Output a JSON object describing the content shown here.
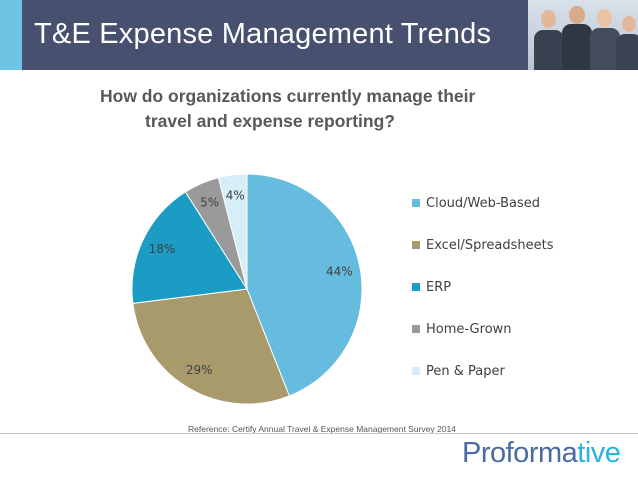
{
  "header": {
    "title": "T&E Expense Management Trends"
  },
  "question": {
    "line1": "How do organizations currently manage their",
    "line2": "travel and expense reporting?"
  },
  "chart_data": {
    "type": "pie",
    "categories": [
      "Cloud/Web-Based",
      "Excel/Spreadsheets",
      "ERP",
      "Home-Grown",
      "Pen & Paper"
    ],
    "values": [
      44,
      29,
      18,
      5,
      4
    ],
    "labels": [
      "44%",
      "29%",
      "18%",
      "5%",
      "4%"
    ],
    "colors": [
      "#66bcdf",
      "#a89a6b",
      "#1a9cc4",
      "#9a9a9a",
      "#d6eef8"
    ],
    "legend_position": "right"
  },
  "reference": "Reference: Certify Annual Travel & Expense Management Survey 2014",
  "brand": {
    "part1": "Proforma",
    "part2": "tive"
  }
}
